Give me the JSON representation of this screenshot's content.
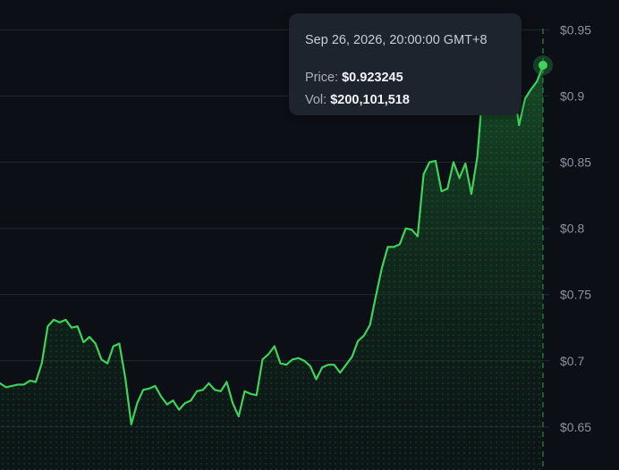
{
  "tooltip": {
    "date": "Sep 26, 2026, 20:00:00 GMT+8",
    "price_label": "Price:",
    "price_value": "$0.923245",
    "vol_label": "Vol:",
    "vol_value": "$200,101,518"
  },
  "colors": {
    "background": "#0c1016",
    "line": "#3fd15a",
    "fill": "#1f7a34",
    "grid": "#222832",
    "crosshair": "#2f9e4a",
    "tooltip_bg": "#1e242e"
  },
  "chart_data": {
    "type": "area",
    "y_ticks": [
      "$0.95",
      "$0.9",
      "$0.85",
      "$0.8",
      "$0.75",
      "$0.7",
      "$0.65"
    ],
    "y_tick_values": [
      0.95,
      0.9,
      0.85,
      0.8,
      0.75,
      0.7,
      0.65
    ],
    "ylim": [
      0.6175,
      0.9725
    ],
    "grid": true,
    "highlighted_point": {
      "value": 0.923245
    },
    "values": [
      0.683,
      0.68,
      0.681,
      0.682,
      0.682,
      0.685,
      0.684,
      0.698,
      0.726,
      0.731,
      0.729,
      0.731,
      0.725,
      0.726,
      0.714,
      0.718,
      0.713,
      0.701,
      0.698,
      0.711,
      0.713,
      0.687,
      0.652,
      0.668,
      0.678,
      0.679,
      0.681,
      0.673,
      0.667,
      0.67,
      0.663,
      0.668,
      0.67,
      0.677,
      0.678,
      0.683,
      0.678,
      0.677,
      0.684,
      0.668,
      0.658,
      0.677,
      0.675,
      0.674,
      0.701,
      0.705,
      0.711,
      0.698,
      0.697,
      0.701,
      0.702,
      0.7,
      0.696,
      0.686,
      0.695,
      0.697,
      0.697,
      0.691,
      0.697,
      0.703,
      0.715,
      0.719,
      0.727,
      0.749,
      0.77,
      0.786,
      0.786,
      0.788,
      0.8,
      0.799,
      0.794,
      0.841,
      0.85,
      0.851,
      0.828,
      0.83,
      0.85,
      0.838,
      0.849,
      0.826,
      0.854,
      0.91,
      0.889,
      0.897,
      0.904,
      0.9,
      0.907,
      0.878,
      0.898,
      0.905,
      0.911,
      0.923
    ]
  }
}
